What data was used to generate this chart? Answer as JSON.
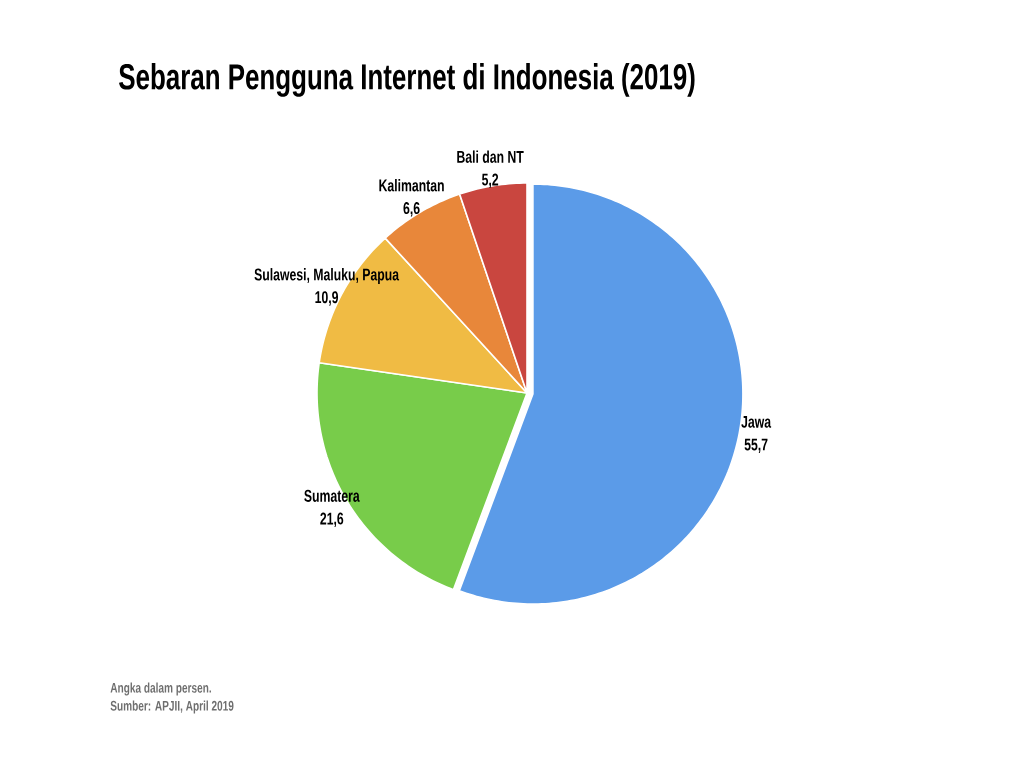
{
  "chart_data": {
    "type": "pie",
    "title": "Sebaran Pengguna Internet di Indonesia (2019)",
    "categories": [
      "Jawa",
      "Sumatera",
      "Sulawesi, Maluku, Papua",
      "Kalimantan",
      "Bali dan NT"
    ],
    "values": [
      55.7,
      21.6,
      10.9,
      6.6,
      5.2
    ],
    "colors": [
      "#5b9be8",
      "#78cc4a",
      "#f0bb44",
      "#e8873a",
      "#c9463f"
    ],
    "value_labels": [
      "55,7",
      "21,6",
      "10,9",
      "6,6",
      "5,2"
    ],
    "annotations": [
      "Angka dalam persen.",
      "Sumber: APJII, April 2019"
    ]
  }
}
